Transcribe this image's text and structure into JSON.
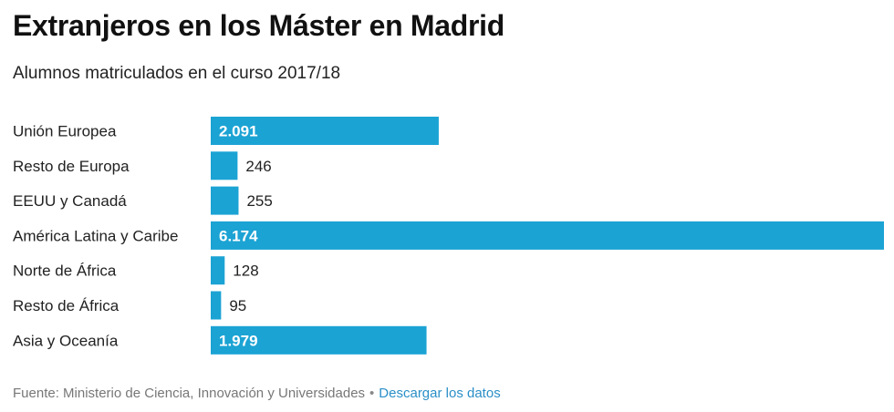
{
  "chart_data": {
    "type": "bar",
    "orientation": "horizontal",
    "title": "Extranjeros en los Máster en Madrid",
    "subtitle": "Alumnos matriculados en el curso 2017/18",
    "categories": [
      "Unión Europea",
      "Resto de Europa",
      "EEUU y Canadá",
      "América Latina y Caribe",
      "Norte de África",
      "Resto de África",
      "Asia y Oceanía"
    ],
    "values": [
      2091,
      246,
      255,
      6174,
      128,
      95,
      1979
    ],
    "value_labels": [
      "2.091",
      "246",
      "255",
      "6.174",
      "128",
      "95",
      "1.979"
    ],
    "xlim": [
      0,
      6174
    ],
    "grid": false,
    "legend": "none",
    "bar_color": "#1ba3d4"
  },
  "footer": {
    "source": "Fuente: Ministerio de Ciencia, Innovación y Universidades",
    "separator": "•",
    "download_label": "Descargar los datos"
  }
}
